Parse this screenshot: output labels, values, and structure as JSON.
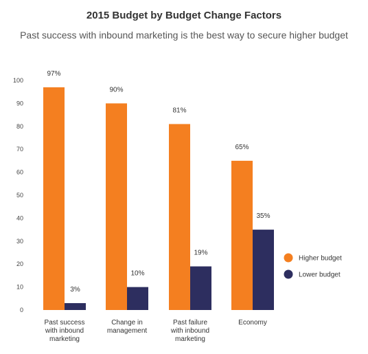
{
  "header": {
    "title": "2015 Budget by Budget Change Factors",
    "subtitle": "Past success with inbound marketing is the best way to secure higher budget"
  },
  "colors": {
    "higher": "#f47f20",
    "lower": "#2d2e5f"
  },
  "chart_data": {
    "type": "bar",
    "title": "2015 Budget by Budget Change Factors",
    "subtitle": "Past success with inbound marketing is the best way to secure higher budget",
    "categories": [
      [
        "Past success",
        "with inbound",
        "marketing"
      ],
      [
        "Change in",
        "management"
      ],
      [
        "Past failure",
        "with inbound",
        "marketing"
      ],
      [
        "Economy"
      ]
    ],
    "series": [
      {
        "name": "Higher budget",
        "values": [
          97,
          90,
          81,
          65
        ],
        "labels": [
          "97%",
          "90%",
          "81%",
          "65%"
        ]
      },
      {
        "name": "Lower budget",
        "values": [
          3,
          10,
          19,
          35
        ],
        "labels": [
          "3%",
          "10%",
          "19%",
          "35%"
        ]
      }
    ],
    "yticks": [
      0,
      10,
      20,
      30,
      40,
      50,
      60,
      70,
      80,
      90,
      100
    ],
    "ylim": [
      0,
      100
    ],
    "grid": false,
    "legend_position": "right"
  }
}
